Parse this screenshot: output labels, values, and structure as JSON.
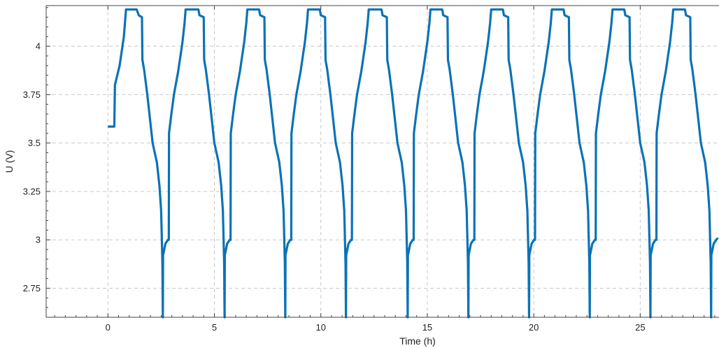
{
  "chart_data": {
    "type": "line",
    "title": "",
    "xlabel": "Time (h)",
    "ylabel": "U (V)",
    "xlim": [
      -2.9,
      28.7
    ],
    "ylim": [
      2.6,
      4.21
    ],
    "grid": true,
    "legend": "none",
    "x_ticks": [
      {
        "value": 0,
        "label": "0"
      },
      {
        "value": 5,
        "label": "5"
      },
      {
        "value": 10,
        "label": "10"
      },
      {
        "value": 15,
        "label": "15"
      },
      {
        "value": 20,
        "label": "20"
      },
      {
        "value": 25,
        "label": "25"
      }
    ],
    "y_ticks": [
      {
        "value": 2.75,
        "label": "2.75"
      },
      {
        "value": 3.0,
        "label": "3"
      },
      {
        "value": 3.25,
        "label": "3.25"
      },
      {
        "value": 3.5,
        "label": "3.5"
      },
      {
        "value": 3.75,
        "label": "3.75"
      },
      {
        "value": 4.0,
        "label": "4"
      }
    ],
    "series": [
      {
        "color": "#0a72b6",
        "points": [
          [
            0.0,
            3.585
          ],
          [
            0.3,
            3.585
          ],
          [
            0.33,
            3.8
          ],
          [
            0.55,
            3.9
          ],
          [
            0.75,
            4.05
          ],
          [
            0.85,
            4.19
          ],
          [
            1.35,
            4.19
          ],
          [
            1.45,
            4.16
          ],
          [
            1.6,
            4.15
          ],
          [
            1.62,
            3.93
          ],
          [
            1.7,
            3.88
          ],
          [
            1.85,
            3.75
          ],
          [
            1.95,
            3.65
          ],
          [
            2.1,
            3.5
          ],
          [
            2.3,
            3.4
          ],
          [
            2.42,
            3.28
          ],
          [
            2.5,
            3.15
          ],
          [
            2.56,
            2.88
          ],
          [
            2.58,
            2.6
          ],
          [
            2.59,
            2.92
          ],
          [
            2.7,
            2.98
          ],
          [
            2.82,
            3.0
          ],
          [
            2.86,
            3.0
          ],
          [
            2.87,
            3.55
          ],
          [
            2.98,
            3.65
          ],
          [
            3.1,
            3.75
          ],
          [
            3.3,
            3.87
          ],
          [
            3.5,
            4.02
          ],
          [
            3.6,
            4.12
          ],
          [
            3.65,
            4.19
          ],
          [
            4.25,
            4.19
          ],
          [
            4.3,
            4.16
          ],
          [
            4.5,
            4.15
          ],
          [
            4.52,
            3.93
          ],
          [
            4.6,
            3.88
          ],
          [
            4.75,
            3.75
          ],
          [
            4.85,
            3.65
          ],
          [
            5.0,
            3.5
          ],
          [
            5.2,
            3.4
          ],
          [
            5.32,
            3.28
          ],
          [
            5.4,
            3.15
          ],
          [
            5.46,
            2.88
          ],
          [
            5.48,
            2.6
          ],
          [
            5.49,
            2.92
          ],
          [
            5.6,
            2.98
          ],
          [
            5.72,
            3.0
          ],
          [
            5.76,
            3.0
          ],
          [
            5.77,
            3.55
          ],
          [
            5.88,
            3.65
          ],
          [
            6.0,
            3.75
          ],
          [
            6.2,
            3.87
          ],
          [
            6.4,
            4.02
          ],
          [
            6.5,
            4.12
          ],
          [
            6.55,
            4.19
          ],
          [
            7.1,
            4.19
          ],
          [
            7.15,
            4.16
          ],
          [
            7.35,
            4.15
          ],
          [
            7.37,
            3.93
          ],
          [
            7.45,
            3.88
          ],
          [
            7.6,
            3.75
          ],
          [
            7.7,
            3.65
          ],
          [
            7.85,
            3.5
          ],
          [
            8.05,
            3.4
          ],
          [
            8.17,
            3.28
          ],
          [
            8.25,
            3.15
          ],
          [
            8.31,
            2.88
          ],
          [
            8.33,
            2.6
          ],
          [
            8.34,
            2.92
          ],
          [
            8.45,
            2.98
          ],
          [
            8.57,
            3.0
          ],
          [
            8.61,
            3.0
          ],
          [
            8.62,
            3.55
          ],
          [
            8.73,
            3.65
          ],
          [
            8.85,
            3.75
          ],
          [
            9.05,
            3.87
          ],
          [
            9.25,
            4.02
          ],
          [
            9.35,
            4.12
          ],
          [
            9.4,
            4.19
          ],
          [
            9.95,
            4.19
          ],
          [
            10.0,
            4.16
          ],
          [
            10.2,
            4.15
          ],
          [
            10.22,
            3.93
          ],
          [
            10.3,
            3.88
          ],
          [
            10.45,
            3.75
          ],
          [
            10.55,
            3.65
          ],
          [
            10.7,
            3.5
          ],
          [
            10.9,
            3.4
          ],
          [
            11.02,
            3.28
          ],
          [
            11.1,
            3.15
          ],
          [
            11.16,
            2.88
          ],
          [
            11.18,
            2.6
          ],
          [
            11.19,
            2.92
          ],
          [
            11.3,
            2.98
          ],
          [
            11.42,
            3.0
          ],
          [
            11.46,
            3.0
          ],
          [
            11.47,
            3.55
          ],
          [
            11.58,
            3.65
          ],
          [
            11.7,
            3.75
          ],
          [
            11.9,
            3.87
          ],
          [
            12.1,
            4.02
          ],
          [
            12.2,
            4.12
          ],
          [
            12.25,
            4.19
          ],
          [
            12.85,
            4.19
          ],
          [
            12.9,
            4.16
          ],
          [
            13.1,
            4.15
          ],
          [
            13.12,
            3.93
          ],
          [
            13.2,
            3.88
          ],
          [
            13.35,
            3.75
          ],
          [
            13.45,
            3.65
          ],
          [
            13.6,
            3.5
          ],
          [
            13.8,
            3.4
          ],
          [
            13.92,
            3.28
          ],
          [
            14.0,
            3.15
          ],
          [
            14.06,
            2.88
          ],
          [
            14.08,
            2.6
          ],
          [
            14.09,
            2.92
          ],
          [
            14.2,
            2.98
          ],
          [
            14.32,
            3.0
          ],
          [
            14.36,
            3.0
          ],
          [
            14.37,
            3.55
          ],
          [
            14.48,
            3.65
          ],
          [
            14.6,
            3.75
          ],
          [
            14.8,
            3.87
          ],
          [
            15.0,
            4.02
          ],
          [
            15.1,
            4.12
          ],
          [
            15.15,
            4.19
          ],
          [
            15.7,
            4.19
          ],
          [
            15.75,
            4.16
          ],
          [
            15.95,
            4.15
          ],
          [
            15.97,
            3.93
          ],
          [
            16.05,
            3.88
          ],
          [
            16.2,
            3.75
          ],
          [
            16.3,
            3.65
          ],
          [
            16.45,
            3.5
          ],
          [
            16.65,
            3.4
          ],
          [
            16.77,
            3.28
          ],
          [
            16.85,
            3.15
          ],
          [
            16.91,
            2.88
          ],
          [
            16.93,
            2.6
          ],
          [
            16.94,
            2.92
          ],
          [
            17.05,
            2.98
          ],
          [
            17.17,
            3.0
          ],
          [
            17.21,
            3.0
          ],
          [
            17.22,
            3.55
          ],
          [
            17.33,
            3.65
          ],
          [
            17.45,
            3.75
          ],
          [
            17.65,
            3.87
          ],
          [
            17.85,
            4.02
          ],
          [
            17.95,
            4.12
          ],
          [
            18.0,
            4.19
          ],
          [
            18.55,
            4.19
          ],
          [
            18.6,
            4.16
          ],
          [
            18.8,
            4.15
          ],
          [
            18.82,
            3.93
          ],
          [
            18.9,
            3.88
          ],
          [
            19.05,
            3.75
          ],
          [
            19.15,
            3.65
          ],
          [
            19.3,
            3.5
          ],
          [
            19.5,
            3.4
          ],
          [
            19.62,
            3.28
          ],
          [
            19.7,
            3.15
          ],
          [
            19.76,
            2.88
          ],
          [
            19.78,
            2.6
          ],
          [
            19.79,
            2.92
          ],
          [
            19.9,
            2.98
          ],
          [
            20.02,
            3.0
          ],
          [
            20.06,
            3.0
          ],
          [
            20.07,
            3.55
          ],
          [
            20.18,
            3.65
          ],
          [
            20.3,
            3.75
          ],
          [
            20.5,
            3.87
          ],
          [
            20.7,
            4.02
          ],
          [
            20.8,
            4.12
          ],
          [
            20.85,
            4.19
          ],
          [
            21.4,
            4.19
          ],
          [
            21.45,
            4.16
          ],
          [
            21.65,
            4.15
          ],
          [
            21.67,
            3.93
          ],
          [
            21.75,
            3.88
          ],
          [
            21.9,
            3.75
          ],
          [
            22.0,
            3.65
          ],
          [
            22.15,
            3.5
          ],
          [
            22.35,
            3.4
          ],
          [
            22.47,
            3.28
          ],
          [
            22.55,
            3.15
          ],
          [
            22.61,
            2.88
          ],
          [
            22.63,
            2.6
          ],
          [
            22.64,
            2.92
          ],
          [
            22.75,
            2.98
          ],
          [
            22.87,
            3.0
          ],
          [
            22.91,
            3.0
          ],
          [
            22.92,
            3.55
          ],
          [
            23.03,
            3.65
          ],
          [
            23.15,
            3.75
          ],
          [
            23.35,
            3.87
          ],
          [
            23.55,
            4.02
          ],
          [
            23.65,
            4.12
          ],
          [
            23.7,
            4.19
          ],
          [
            24.25,
            4.19
          ],
          [
            24.3,
            4.16
          ],
          [
            24.5,
            4.15
          ],
          [
            24.52,
            3.93
          ],
          [
            24.6,
            3.88
          ],
          [
            24.75,
            3.75
          ],
          [
            24.85,
            3.65
          ],
          [
            25.0,
            3.5
          ],
          [
            25.2,
            3.4
          ],
          [
            25.32,
            3.28
          ],
          [
            25.4,
            3.15
          ],
          [
            25.46,
            2.88
          ],
          [
            25.48,
            2.6
          ],
          [
            25.49,
            2.92
          ],
          [
            25.6,
            2.98
          ],
          [
            25.72,
            3.0
          ],
          [
            25.76,
            3.0
          ],
          [
            25.77,
            3.55
          ],
          [
            25.88,
            3.65
          ],
          [
            26.0,
            3.75
          ],
          [
            26.2,
            3.87
          ],
          [
            26.4,
            4.02
          ],
          [
            26.5,
            4.12
          ],
          [
            26.55,
            4.19
          ],
          [
            27.1,
            4.19
          ],
          [
            27.15,
            4.16
          ],
          [
            27.35,
            4.15
          ],
          [
            27.37,
            3.93
          ],
          [
            27.45,
            3.88
          ],
          [
            27.6,
            3.75
          ],
          [
            27.7,
            3.65
          ],
          [
            27.85,
            3.5
          ],
          [
            28.05,
            3.4
          ],
          [
            28.17,
            3.28
          ],
          [
            28.25,
            3.15
          ],
          [
            28.31,
            2.88
          ],
          [
            28.33,
            2.6
          ],
          [
            28.34,
            2.92
          ],
          [
            28.45,
            2.98
          ],
          [
            28.57,
            3.0
          ],
          [
            28.65,
            3.01
          ]
        ]
      }
    ]
  }
}
